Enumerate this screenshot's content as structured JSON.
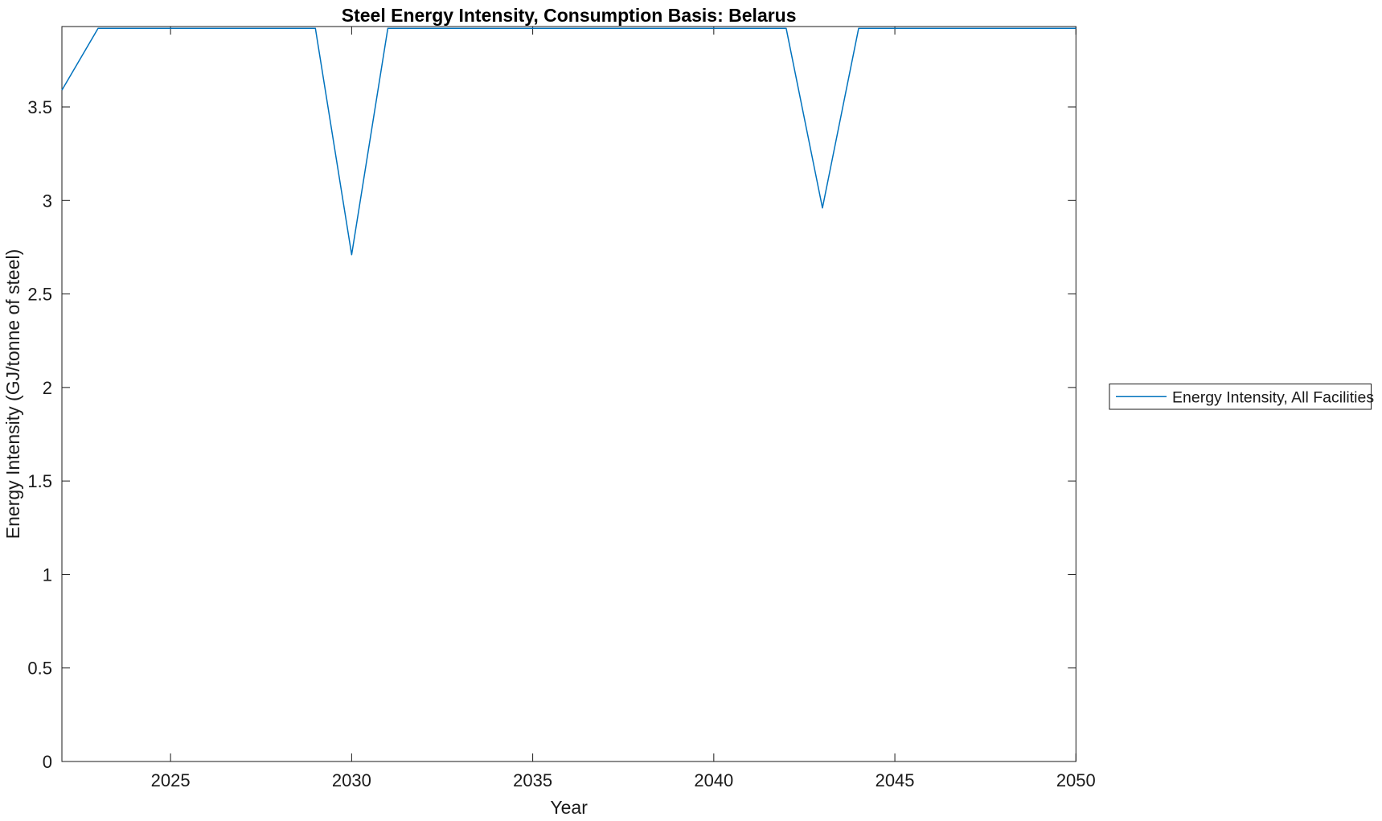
{
  "chart_data": {
    "type": "line",
    "title": "Steel Energy Intensity, Consumption Basis: Belarus",
    "xlabel": "Year",
    "ylabel": "Energy Intensity (GJ/tonne of steel)",
    "xlim": [
      2022,
      2050
    ],
    "ylim": [
      0,
      3.93
    ],
    "x_ticks": [
      2025,
      2030,
      2035,
      2040,
      2045,
      2050
    ],
    "y_ticks": [
      0,
      0.5,
      1,
      1.5,
      2,
      2.5,
      3,
      3.5
    ],
    "y_tick_labels": [
      "0",
      "0.5",
      "1",
      "1.5",
      "2",
      "2.5",
      "3",
      "3.5"
    ],
    "grid": false,
    "legend": {
      "position": "outside-right",
      "entries": [
        "Energy Intensity, All Facilities"
      ]
    },
    "series": [
      {
        "name": "Energy Intensity, All Facilities",
        "color": "#0072BD",
        "x": [
          2022,
          2023,
          2024,
          2025,
          2026,
          2027,
          2028,
          2029,
          2030,
          2031,
          2032,
          2033,
          2034,
          2035,
          2036,
          2037,
          2038,
          2039,
          2040,
          2041,
          2042,
          2043,
          2044,
          2045,
          2046,
          2047,
          2048,
          2049,
          2050
        ],
        "values": [
          3.59,
          3.92,
          3.92,
          3.92,
          3.92,
          3.92,
          3.92,
          3.92,
          2.71,
          3.92,
          3.92,
          3.92,
          3.92,
          3.92,
          3.92,
          3.92,
          3.92,
          3.92,
          3.92,
          3.92,
          3.92,
          2.96,
          3.92,
          3.92,
          3.92,
          3.92,
          3.92,
          3.92,
          3.92
        ]
      }
    ],
    "colors": {
      "line": "#0072BD",
      "axis": "#1a1a1a",
      "background": "#ffffff"
    }
  }
}
